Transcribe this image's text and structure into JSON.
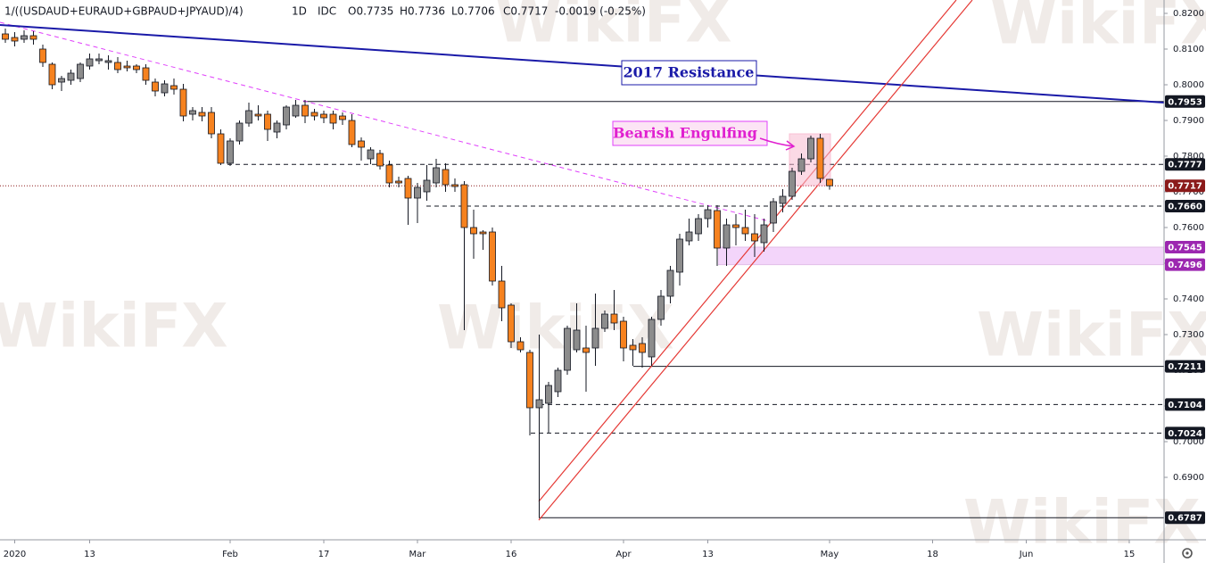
{
  "chart_data": {
    "type": "candlestick",
    "title": "1/((USDAUD+EURAUD+GBPAUD+JPYAUD)/4)",
    "interval": "1D",
    "source": "IDC",
    "header_values": [
      "O0.7735",
      "H0.7736",
      "L0.7706",
      "C0.7717",
      "-0.0019 (-0.25%)"
    ],
    "watermark": "WikiFX",
    "up_color": "#8c8c8c",
    "down_color": "#f6821f",
    "open": [
      0.81425,
      0.81325,
      0.81275,
      0.81375,
      0.81,
      0.80575,
      0.80075,
      0.80125,
      0.80175,
      0.80525,
      0.80675,
      0.80625,
      0.80625,
      0.80525,
      0.80525,
      0.80475,
      0.80075,
      0.79775,
      0.79975,
      0.79875,
      0.79175,
      0.79225,
      0.79225,
      0.78625,
      0.778,
      0.78425,
      0.78925,
      0.79175,
      0.79175,
      0.78675,
      0.78875,
      0.79125,
      0.79425,
      0.79225,
      0.79175,
      0.79175,
      0.79125,
      0.79,
      0.78425,
      0.77925,
      0.78075,
      0.7775,
      0.773,
      0.77375,
      0.76825,
      0.77,
      0.7725,
      0.77625,
      0.772,
      0.772,
      0.76,
      0.75875,
      0.75875,
      0.745,
      0.73825,
      0.728,
      0.725,
      0.7095,
      0.71075,
      0.714,
      0.72,
      0.72575,
      0.72625,
      0.72625,
      0.73175,
      0.73575,
      0.73375,
      0.727,
      0.7275,
      0.72375,
      0.73425,
      0.74075,
      0.7475,
      0.75625,
      0.75825,
      0.7625,
      0.76475,
      0.75425,
      0.76075,
      0.76,
      0.75825,
      0.75575,
      0.76125,
      0.76675,
      0.76875,
      0.77575,
      0.77925,
      0.785,
      0.7735
    ],
    "high": [
      0.81575,
      0.81475,
      0.81525,
      0.815,
      0.81125,
      0.80625,
      0.8025,
      0.80425,
      0.80625,
      0.80875,
      0.80875,
      0.80825,
      0.80775,
      0.80675,
      0.80575,
      0.80575,
      0.80175,
      0.80125,
      0.80175,
      0.80025,
      0.79375,
      0.79375,
      0.79375,
      0.7875,
      0.785,
      0.79,
      0.795,
      0.79425,
      0.79275,
      0.79,
      0.79425,
      0.79575,
      0.79575,
      0.79325,
      0.79275,
      0.79275,
      0.79225,
      0.79175,
      0.78525,
      0.7825,
      0.78175,
      0.77875,
      0.77425,
      0.7745,
      0.7725,
      0.7775,
      0.77925,
      0.778,
      0.77375,
      0.773,
      0.765,
      0.75925,
      0.76,
      0.74925,
      0.73875,
      0.72925,
      0.72575,
      0.73,
      0.71675,
      0.72075,
      0.7325,
      0.73875,
      0.7325,
      0.7415,
      0.73675,
      0.7425,
      0.735,
      0.72875,
      0.72925,
      0.735,
      0.7425,
      0.74925,
      0.75825,
      0.7625,
      0.76375,
      0.76625,
      0.76625,
      0.7625,
      0.76375,
      0.765,
      0.76375,
      0.7625,
      0.76825,
      0.77075,
      0.77675,
      0.78075,
      0.78575,
      0.78625,
      0.7736
    ],
    "low": [
      0.81175,
      0.81075,
      0.81175,
      0.81125,
      0.805,
      0.79875,
      0.79825,
      0.8,
      0.80075,
      0.80425,
      0.80575,
      0.80425,
      0.80325,
      0.80375,
      0.80325,
      0.8,
      0.79675,
      0.79675,
      0.79725,
      0.78975,
      0.79,
      0.78975,
      0.785,
      0.7775,
      0.77725,
      0.78325,
      0.78825,
      0.79,
      0.78425,
      0.785,
      0.7875,
      0.79075,
      0.78925,
      0.79,
      0.78925,
      0.7875,
      0.78875,
      0.7825,
      0.77875,
      0.77775,
      0.77625,
      0.77125,
      0.77125,
      0.76075,
      0.76125,
      0.7675,
      0.77125,
      0.77,
      0.77,
      0.73125,
      0.75125,
      0.75375,
      0.74375,
      0.73375,
      0.72625,
      0.725,
      0.70175,
      0.6787,
      0.7025,
      0.7125,
      0.71875,
      0.725,
      0.714,
      0.72125,
      0.73075,
      0.73125,
      0.7225,
      0.72125,
      0.72075,
      0.72125,
      0.7325,
      0.73875,
      0.74375,
      0.755,
      0.75625,
      0.76,
      0.74925,
      0.74925,
      0.755,
      0.75625,
      0.75175,
      0.75325,
      0.75875,
      0.76425,
      0.76775,
      0.77475,
      0.77825,
      0.7725,
      0.7706
    ],
    "close": [
      0.81275,
      0.81225,
      0.81375,
      0.81275,
      0.80625,
      0.8,
      0.80175,
      0.80325,
      0.80575,
      0.80725,
      0.80725,
      0.80675,
      0.80425,
      0.80475,
      0.80425,
      0.80125,
      0.79825,
      0.80025,
      0.79875,
      0.79125,
      0.79275,
      0.79125,
      0.78625,
      0.778,
      0.78425,
      0.78925,
      0.79275,
      0.79125,
      0.7875,
      0.78925,
      0.79375,
      0.79425,
      0.79125,
      0.79125,
      0.79075,
      0.78925,
      0.79025,
      0.78325,
      0.7825,
      0.78175,
      0.77725,
      0.7725,
      0.7725,
      0.76825,
      0.77125,
      0.77325,
      0.77675,
      0.772,
      0.7715,
      0.76,
      0.75825,
      0.75825,
      0.745,
      0.7375,
      0.728,
      0.72575,
      0.7095,
      0.71175,
      0.71575,
      0.72,
      0.73175,
      0.73125,
      0.725,
      0.73175,
      0.73575,
      0.73325,
      0.72625,
      0.72575,
      0.725,
      0.73425,
      0.74075,
      0.748,
      0.75675,
      0.75875,
      0.7625,
      0.765,
      0.75425,
      0.76075,
      0.76,
      0.75825,
      0.75625,
      0.76075,
      0.76725,
      0.76875,
      0.77575,
      0.77925,
      0.785,
      0.77375,
      0.7717
    ],
    "xlim": [
      -0.571,
      123.714
    ],
    "xticks": [
      {
        "value": 1,
        "label": "2020"
      },
      {
        "value": 9,
        "label": "13"
      },
      {
        "value": 24,
        "label": "Feb"
      },
      {
        "value": 34,
        "label": "17"
      },
      {
        "value": 44,
        "label": "Mar"
      },
      {
        "value": 54,
        "label": "16"
      },
      {
        "value": 66,
        "label": "Apr"
      },
      {
        "value": 75,
        "label": "13"
      },
      {
        "value": 88,
        "label": "May"
      },
      {
        "value": 99,
        "label": "18"
      },
      {
        "value": 109,
        "label": "Jun"
      },
      {
        "value": 120,
        "label": "15"
      }
    ],
    "ylim": [
      0.6725,
      0.82375
    ],
    "yticks": [
      {
        "value": 0.82,
        "label": "0.8200"
      },
      {
        "value": 0.81,
        "label": "0.8100"
      },
      {
        "value": 0.8,
        "label": "0.8000"
      },
      {
        "value": 0.79,
        "label": "0.7900"
      },
      {
        "value": 0.78,
        "label": "0.7800"
      },
      {
        "value": 0.77,
        "label": "0.7700"
      },
      {
        "value": 0.76,
        "label": "0.7600"
      },
      {
        "value": 0.75,
        "label": "0.7500"
      },
      {
        "value": 0.74,
        "label": "0.7400"
      },
      {
        "value": 0.73,
        "label": "0.7300"
      },
      {
        "value": 0.72,
        "label": "0.7200"
      },
      {
        "value": 0.71,
        "label": "0.7100"
      },
      {
        "value": 0.7,
        "label": "0.7000"
      },
      {
        "value": 0.69,
        "label": "0.6900"
      }
    ],
    "levels": [
      {
        "value": 0.7953,
        "style": "solid",
        "color": "#131722"
      },
      {
        "value": 0.7777,
        "style": "dashed",
        "color": "#131722"
      },
      {
        "value": 0.7717,
        "style": "dotted",
        "color": "#8b1a1a"
      },
      {
        "value": {
          "value": 0.766,
          "label": "0.7660"
        },
        "style": "dashed",
        "color": "#131722"
      },
      {
        "value": 0.7545,
        "style": "zone",
        "color": "#9c27b0"
      },
      {
        "value": 0.7496,
        "style": "zone",
        "color": "#9c27b0"
      },
      {
        "value": 0.7211,
        "style": "solid",
        "color": "#131722"
      },
      {
        "value": 0.7104,
        "style": "dashed",
        "color": "#131722"
      },
      {
        "value": 0.7024,
        "style": "dashed",
        "color": "#131722"
      },
      {
        "value": 0.6787,
        "style": "solid",
        "color": "#131722"
      }
    ],
    "annotations": [
      "2017 Resistance",
      "Bearish Engulfing"
    ]
  }
}
